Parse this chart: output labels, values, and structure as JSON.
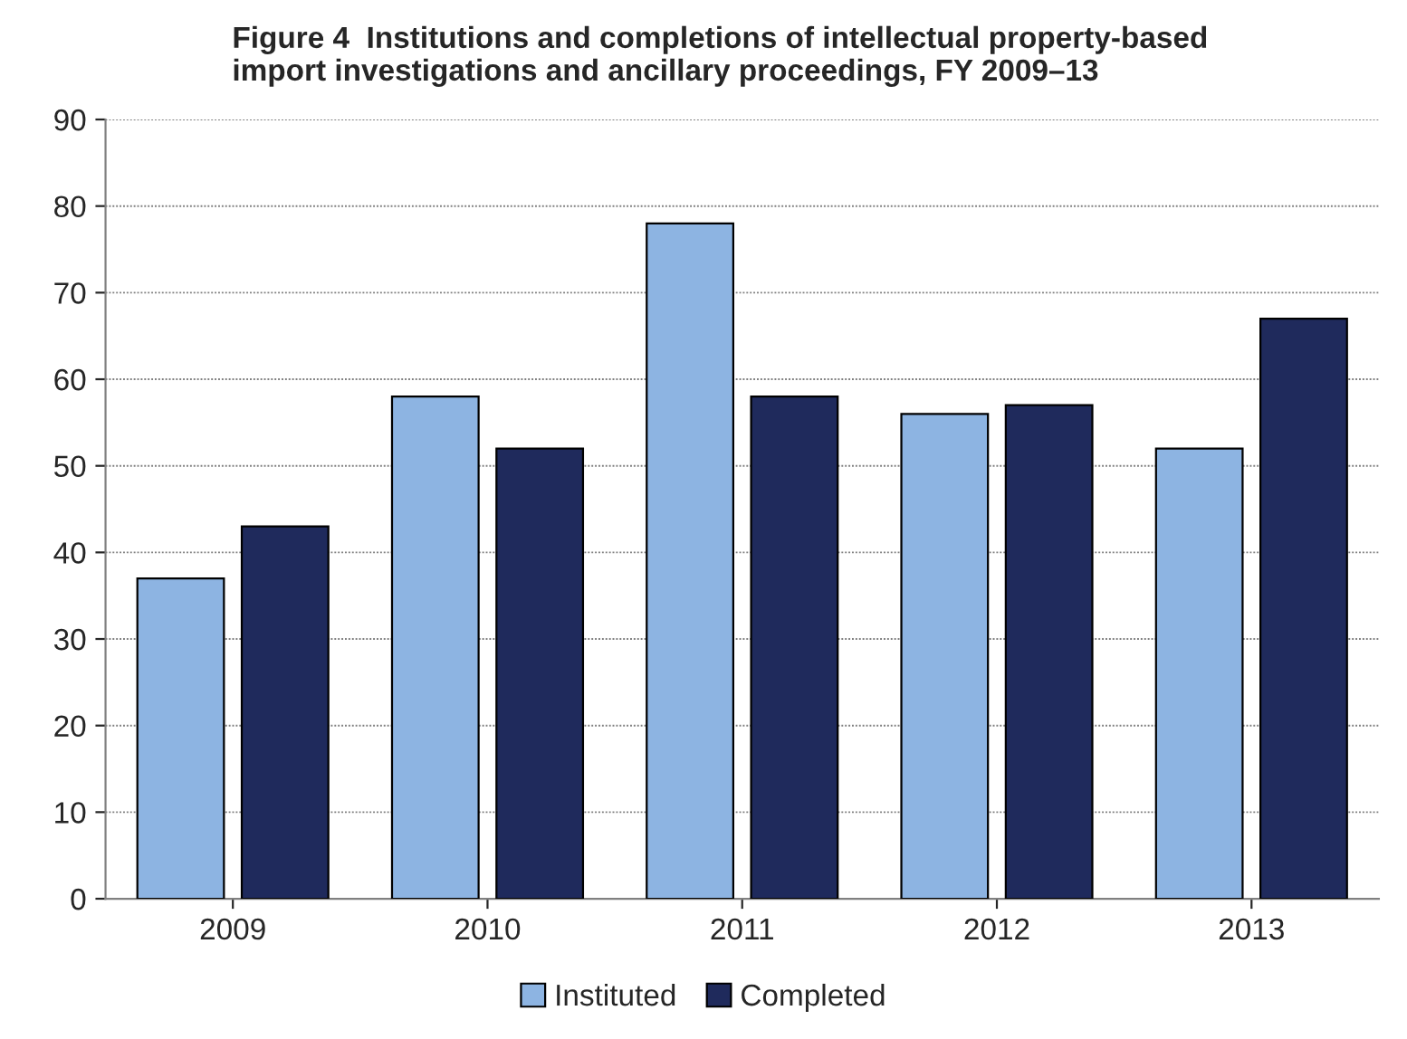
{
  "chart_data": {
    "type": "bar",
    "title": "Figure 4  Institutions and completions of intellectual property-based\nimport investigations and ancillary proceedings, FY 2009–13",
    "categories": [
      "2009",
      "2010",
      "2011",
      "2012",
      "2013"
    ],
    "series": [
      {
        "name": "Instituted",
        "color": "#8db4e2",
        "values": [
          37,
          58,
          78,
          56,
          52
        ]
      },
      {
        "name": "Completed",
        "color": "#1f2a5c",
        "values": [
          43,
          52,
          58,
          57,
          67
        ]
      }
    ],
    "ylim": [
      0,
      90
    ],
    "yticks": [
      0,
      10,
      20,
      30,
      40,
      50,
      60,
      70,
      80,
      90
    ],
    "grid": "y",
    "legend": "bottom"
  }
}
